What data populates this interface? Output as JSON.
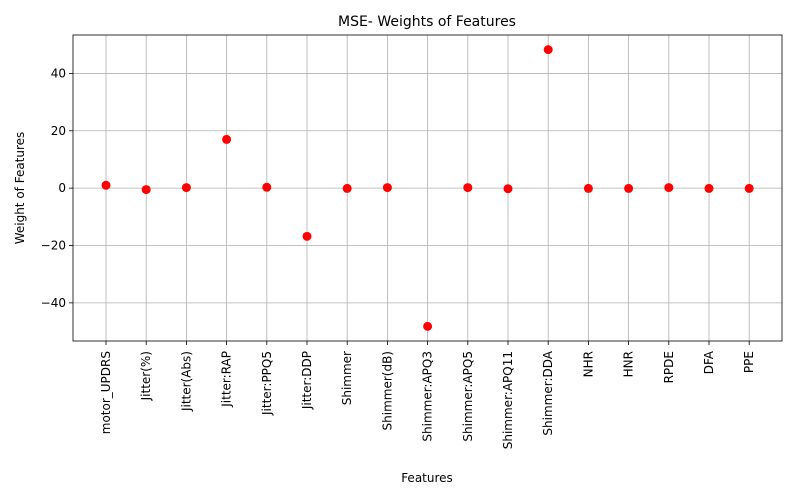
{
  "chart_data": {
    "type": "scatter",
    "title": "MSE- Weights of Features",
    "xlabel": "Features",
    "ylabel": "Weight of Features",
    "categories": [
      "motor_UPDRS",
      "Jitter(%)",
      "Jitter(Abs)",
      "Jitter:RAP",
      "Jitter:PPQ5",
      "Jitter:DDP",
      "Shimmer",
      "Shimmer(dB)",
      "Shimmer:APQ3",
      "Shimmer:APQ5",
      "Shimmer:APQ11",
      "Shimmer:DDA",
      "NHR",
      "HNR",
      "RPDE",
      "DFA",
      "PPE"
    ],
    "values": [
      1.0,
      -0.5,
      0.2,
      17.0,
      0.3,
      -16.8,
      -0.1,
      0.2,
      -48.2,
      0.2,
      -0.2,
      48.3,
      -0.1,
      -0.1,
      0.2,
      -0.1,
      -0.1
    ],
    "ylim": [
      -53.3,
      53.4
    ],
    "yticks": [
      -40,
      -20,
      0,
      20,
      40
    ],
    "grid": true,
    "marker_color": "#ff0000"
  }
}
